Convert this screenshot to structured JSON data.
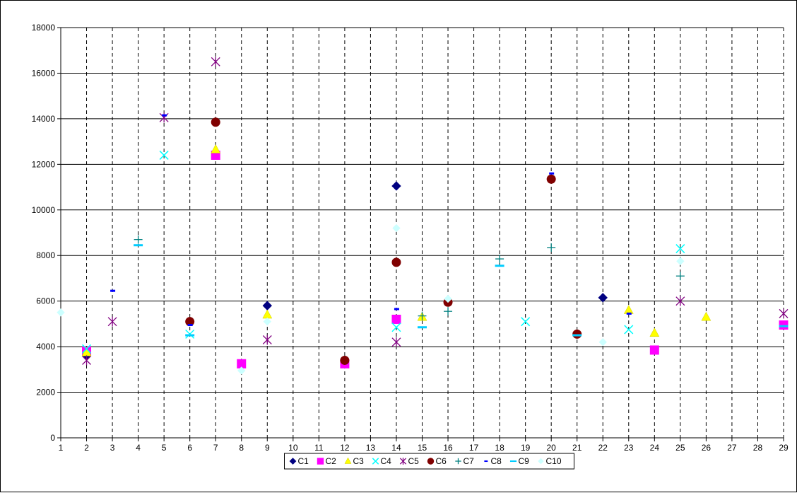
{
  "chart_data": {
    "type": "scatter",
    "title": "",
    "xlabel": "",
    "ylabel": "",
    "xlim": [
      1,
      29
    ],
    "ylim": [
      0,
      18000
    ],
    "y_ticks": [
      0,
      2000,
      4000,
      6000,
      8000,
      10000,
      12000,
      14000,
      16000,
      18000
    ],
    "x_ticks": [
      1,
      2,
      3,
      4,
      5,
      6,
      7,
      8,
      9,
      10,
      11,
      12,
      13,
      14,
      15,
      16,
      17,
      18,
      19,
      20,
      21,
      22,
      23,
      24,
      25,
      26,
      27,
      28,
      29
    ],
    "x_tick_labels": [
      "1",
      "2",
      "3",
      "4",
      "5",
      "6",
      "7",
      "8",
      "9",
      "10",
      "11",
      "12",
      "13",
      "14",
      "15",
      "16",
      "17",
      "18",
      "19",
      "20",
      "21",
      "22",
      "23",
      "24",
      "25",
      "26",
      "27",
      "28",
      "29"
    ],
    "y_tick_labels": [
      "0",
      "2000",
      "4000",
      "6000",
      "8000",
      "10000",
      "12000",
      "14000",
      "16000",
      "18000"
    ],
    "grid": {
      "horizontal": "solid",
      "vertical": "dashed"
    },
    "legend_position": "bottom",
    "series": [
      {
        "name": "C1",
        "marker": "diamond",
        "color": "#000080",
        "points": [
          [
            2,
            3600
          ],
          [
            9,
            5800
          ],
          [
            12,
            3400
          ],
          [
            14,
            11050
          ],
          [
            22,
            6150
          ]
        ]
      },
      {
        "name": "C2",
        "marker": "square",
        "color": "#ff00ff",
        "points": [
          [
            2,
            3800
          ],
          [
            7,
            12400
          ],
          [
            8,
            3250
          ],
          [
            12,
            3250
          ],
          [
            14,
            5200
          ],
          [
            24,
            3850
          ],
          [
            29,
            4950
          ]
        ]
      },
      {
        "name": "C3",
        "marker": "triangle",
        "color": "#ffff00",
        "points": [
          [
            2,
            3750
          ],
          [
            7,
            12650
          ],
          [
            9,
            5400
          ],
          [
            15,
            5300
          ],
          [
            23,
            5600
          ],
          [
            24,
            4600
          ],
          [
            26,
            5300
          ]
        ]
      },
      {
        "name": "C4",
        "marker": "x",
        "color": "#00ffff",
        "points": [
          [
            2,
            3900
          ],
          [
            5,
            12400
          ],
          [
            6,
            4550
          ],
          [
            14,
            4850
          ],
          [
            19,
            5100
          ],
          [
            23,
            4750
          ],
          [
            25,
            8300
          ]
        ]
      },
      {
        "name": "C5",
        "marker": "star",
        "color": "#800080",
        "points": [
          [
            2,
            3400
          ],
          [
            3,
            5100
          ],
          [
            5,
            14050
          ],
          [
            7,
            16500
          ],
          [
            9,
            4300
          ],
          [
            14,
            4200
          ],
          [
            25,
            6000
          ],
          [
            29,
            5450
          ]
        ]
      },
      {
        "name": "C6",
        "marker": "circle",
        "color": "#800000",
        "points": [
          [
            6,
            5100
          ],
          [
            7,
            13850
          ],
          [
            12,
            3400
          ],
          [
            14,
            7700
          ],
          [
            16,
            5950
          ],
          [
            20,
            11350
          ],
          [
            21,
            4550
          ]
        ]
      },
      {
        "name": "C7",
        "marker": "plus",
        "color": "#008080",
        "points": [
          [
            4,
            8700
          ],
          [
            15,
            5350
          ],
          [
            16,
            5550
          ],
          [
            18,
            7850
          ],
          [
            20,
            8350
          ],
          [
            25,
            7100
          ]
        ]
      },
      {
        "name": "C8",
        "marker": "dash",
        "color": "#0000ff",
        "points": [
          [
            3,
            6450
          ],
          [
            5,
            14150
          ],
          [
            6,
            4950
          ],
          [
            14,
            5650
          ],
          [
            20,
            11600
          ],
          [
            23,
            5450
          ]
        ]
      },
      {
        "name": "C9",
        "marker": "longdash",
        "color": "#00ccff",
        "points": [
          [
            4,
            8450
          ],
          [
            6,
            4500
          ],
          [
            15,
            4850
          ],
          [
            18,
            7550
          ],
          [
            21,
            4500
          ],
          [
            29,
            4900
          ]
        ]
      },
      {
        "name": "C10",
        "marker": "smalldiamond",
        "color": "#ccffff",
        "points": [
          [
            1,
            5500
          ],
          [
            8,
            2950
          ],
          [
            9,
            5100
          ],
          [
            14,
            9200
          ],
          [
            16,
            6100
          ],
          [
            22,
            4200
          ],
          [
            25,
            7750
          ]
        ]
      }
    ]
  }
}
